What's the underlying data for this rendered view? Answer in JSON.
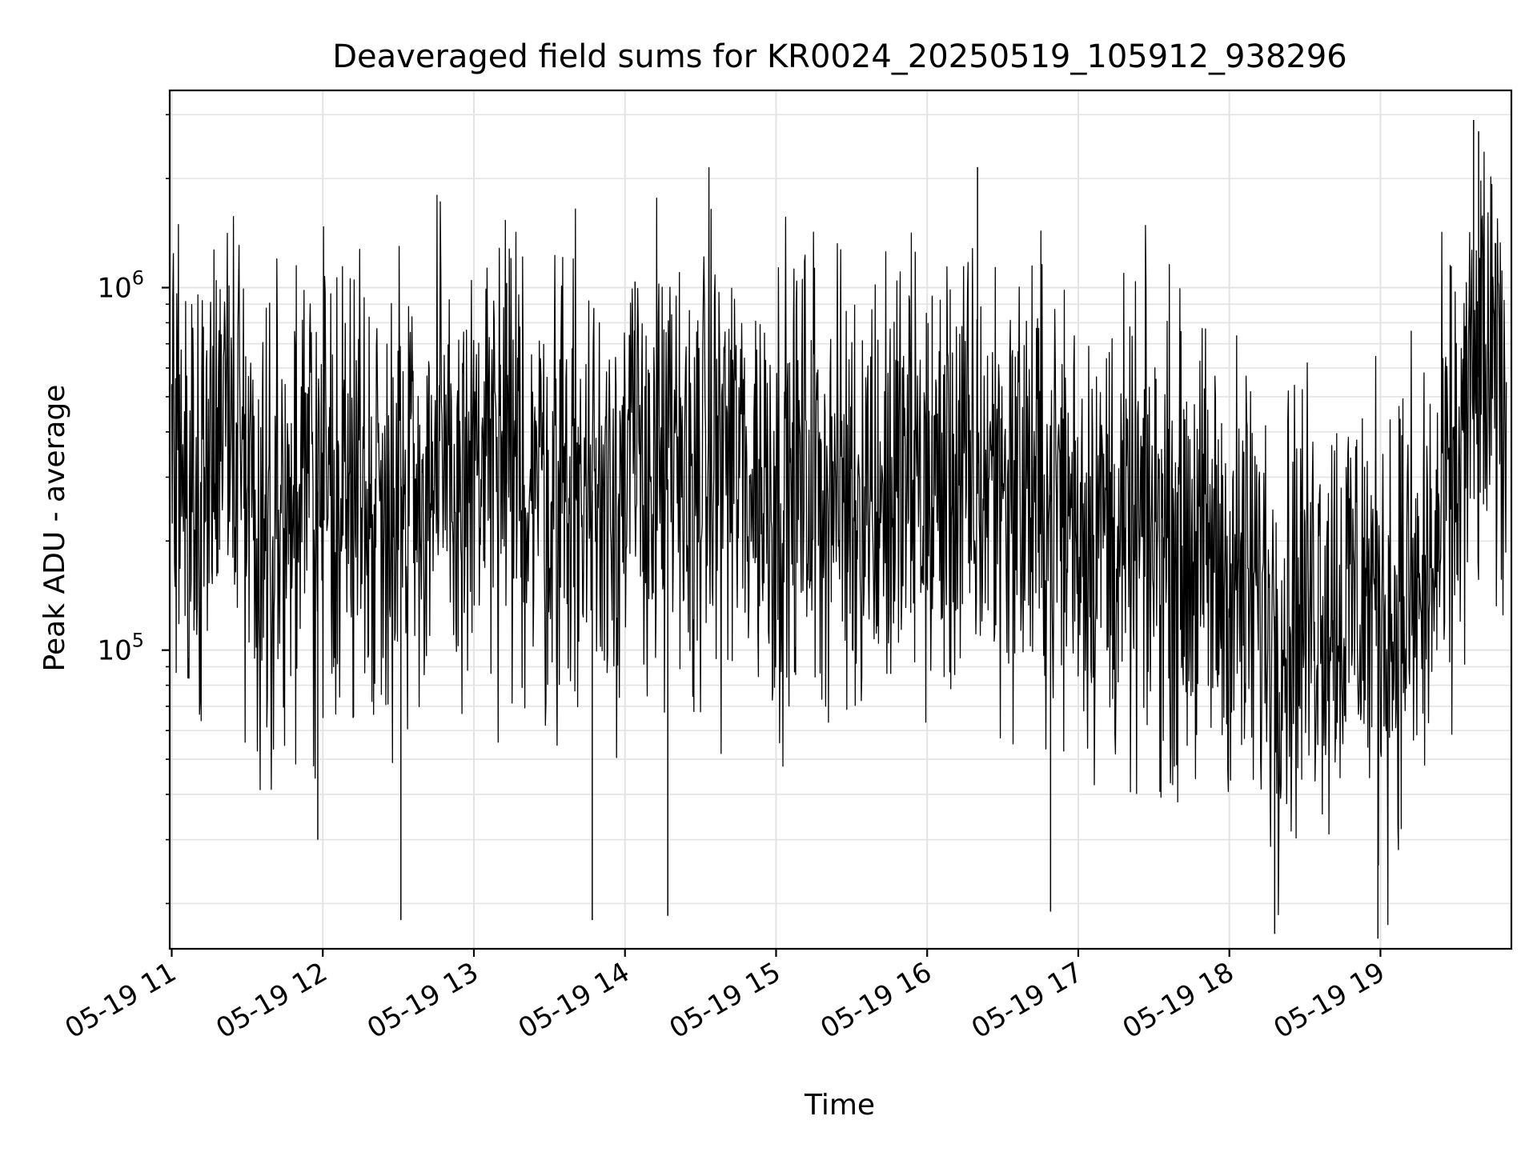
{
  "chart_data": {
    "type": "line",
    "title": "Deaveraged field sums for KR0024_20250519_105912_938296",
    "xlabel": "Time",
    "ylabel": "Peak ADU - average",
    "yscale": "log",
    "grid": true,
    "grid_which": "both",
    "x_range": [
      "2025-05-19T10:59:12",
      "2025-05-19T19:52:00"
    ],
    "ylim": [
      15000,
      3500000
    ],
    "x_ticks": [
      {
        "time": "2025-05-19T11:00:00",
        "label": "05-19 11"
      },
      {
        "time": "2025-05-19T12:00:00",
        "label": "05-19 12"
      },
      {
        "time": "2025-05-19T13:00:00",
        "label": "05-19 13"
      },
      {
        "time": "2025-05-19T14:00:00",
        "label": "05-19 14"
      },
      {
        "time": "2025-05-19T15:00:00",
        "label": "05-19 15"
      },
      {
        "time": "2025-05-19T16:00:00",
        "label": "05-19 16"
      },
      {
        "time": "2025-05-19T17:00:00",
        "label": "05-19 17"
      },
      {
        "time": "2025-05-19T18:00:00",
        "label": "05-19 18"
      },
      {
        "time": "2025-05-19T19:00:00",
        "label": "05-19 19"
      }
    ],
    "y_ticks": [
      {
        "value": 100000,
        "base": "10",
        "exp": "5"
      },
      {
        "value": 1000000,
        "base": "10",
        "exp": "6"
      }
    ],
    "series": [
      {
        "color": "#000000",
        "x": [
          "2025-05-19T11:00:00",
          "2025-05-19T11:05:00",
          "2025-05-19T11:10:00",
          "2025-05-19T11:15:00",
          "2025-05-19T11:20:00",
          "2025-05-19T11:25:00",
          "2025-05-19T11:30:00",
          "2025-05-19T11:35:00",
          "2025-05-19T11:40:00",
          "2025-05-19T11:45:00",
          "2025-05-19T11:50:00",
          "2025-05-19T11:55:00",
          "2025-05-19T12:00:00",
          "2025-05-19T12:05:00",
          "2025-05-19T12:10:00",
          "2025-05-19T12:15:00",
          "2025-05-19T12:20:00",
          "2025-05-19T12:25:00",
          "2025-05-19T12:30:00",
          "2025-05-19T12:35:00",
          "2025-05-19T12:40:00",
          "2025-05-19T12:45:00",
          "2025-05-19T12:50:00",
          "2025-05-19T12:55:00",
          "2025-05-19T13:00:00",
          "2025-05-19T13:05:00",
          "2025-05-19T13:10:00",
          "2025-05-19T13:15:00",
          "2025-05-19T13:20:00",
          "2025-05-19T13:25:00",
          "2025-05-19T13:30:00",
          "2025-05-19T13:35:00",
          "2025-05-19T13:40:00",
          "2025-05-19T13:45:00",
          "2025-05-19T13:50:00",
          "2025-05-19T13:55:00",
          "2025-05-19T14:00:00",
          "2025-05-19T14:05:00",
          "2025-05-19T14:10:00",
          "2025-05-19T14:15:00",
          "2025-05-19T14:20:00",
          "2025-05-19T14:25:00",
          "2025-05-19T14:30:00",
          "2025-05-19T14:35:00",
          "2025-05-19T14:40:00",
          "2025-05-19T14:45:00",
          "2025-05-19T14:50:00",
          "2025-05-19T14:55:00",
          "2025-05-19T15:00:00",
          "2025-05-19T15:05:00",
          "2025-05-19T15:10:00",
          "2025-05-19T15:15:00",
          "2025-05-19T15:20:00",
          "2025-05-19T15:25:00",
          "2025-05-19T15:30:00",
          "2025-05-19T15:35:00",
          "2025-05-19T15:40:00",
          "2025-05-19T15:45:00",
          "2025-05-19T15:50:00",
          "2025-05-19T15:55:00",
          "2025-05-19T16:00:00",
          "2025-05-19T16:05:00",
          "2025-05-19T16:10:00",
          "2025-05-19T16:15:00",
          "2025-05-19T16:20:00",
          "2025-05-19T16:25:00",
          "2025-05-19T16:30:00",
          "2025-05-19T16:35:00",
          "2025-05-19T16:40:00",
          "2025-05-19T16:45:00",
          "2025-05-19T16:50:00",
          "2025-05-19T16:55:00",
          "2025-05-19T17:00:00",
          "2025-05-19T17:05:00",
          "2025-05-19T17:10:00",
          "2025-05-19T17:15:00",
          "2025-05-19T17:20:00",
          "2025-05-19T17:25:00",
          "2025-05-19T17:30:00",
          "2025-05-19T17:35:00",
          "2025-05-19T17:40:00",
          "2025-05-19T17:45:00",
          "2025-05-19T17:50:00",
          "2025-05-19T17:55:00",
          "2025-05-19T18:00:00",
          "2025-05-19T18:05:00",
          "2025-05-19T18:10:00",
          "2025-05-19T18:15:00",
          "2025-05-19T18:20:00",
          "2025-05-19T18:25:00",
          "2025-05-19T18:30:00",
          "2025-05-19T18:35:00",
          "2025-05-19T18:40:00",
          "2025-05-19T18:45:00",
          "2025-05-19T18:50:00",
          "2025-05-19T18:55:00",
          "2025-05-19T19:00:00",
          "2025-05-19T19:05:00",
          "2025-05-19T19:10:00",
          "2025-05-19T19:15:00",
          "2025-05-19T19:20:00",
          "2025-05-19T19:25:00",
          "2025-05-19T19:30:00",
          "2025-05-19T19:35:00",
          "2025-05-19T19:40:00",
          "2025-05-19T19:45:00",
          "2025-05-19T19:50:00"
        ],
        "y": [
          280000,
          320000,
          250000,
          380000,
          550000,
          420000,
          300000,
          210000,
          230000,
          260000,
          240000,
          280000,
          270000,
          300000,
          260000,
          310000,
          250000,
          280000,
          290000,
          330000,
          270000,
          300000,
          260000,
          290000,
          310000,
          340000,
          300000,
          280000,
          320000,
          300000,
          270000,
          310000,
          290000,
          260000,
          300000,
          320000,
          280000,
          310000,
          330000,
          300000,
          290000,
          270000,
          320000,
          340000,
          360000,
          320000,
          300000,
          290000,
          270000,
          280000,
          300000,
          310000,
          290000,
          280000,
          260000,
          300000,
          280000,
          270000,
          290000,
          310000,
          260000,
          280000,
          300000,
          290000,
          270000,
          320000,
          300000,
          280000,
          290000,
          260000,
          270000,
          250000,
          240000,
          220000,
          230000,
          200000,
          190000,
          210000,
          200000,
          220000,
          190000,
          200000,
          180000,
          170000,
          160000,
          150000,
          140000,
          130000,
          120000,
          140000,
          130000,
          150000,
          140000,
          130000,
          150000,
          140000,
          130000,
          120000,
          140000,
          130000,
          160000,
          220000,
          300000,
          450000,
          600000,
          520000,
          480000
        ],
        "spikes": [
          {
            "time": "2025-05-19T11:58:00",
            "value": 30000
          },
          {
            "time": "2025-05-19T12:31:00",
            "value": 18000
          },
          {
            "time": "2025-05-19T13:13:00",
            "value": 1030000
          },
          {
            "time": "2025-05-19T13:47:00",
            "value": 18000
          },
          {
            "time": "2025-05-19T14:04:00",
            "value": 1040000
          },
          {
            "time": "2025-05-19T14:17:00",
            "value": 18500
          },
          {
            "time": "2025-05-19T16:02:00",
            "value": 950000
          },
          {
            "time": "2025-05-19T16:20:00",
            "value": 2150000
          },
          {
            "time": "2025-05-19T16:49:00",
            "value": 19000
          },
          {
            "time": "2025-05-19T18:18:00",
            "value": 16500
          },
          {
            "time": "2025-05-19T18:59:00",
            "value": 16000
          },
          {
            "time": "2025-05-19T19:37:00",
            "value": 2900000
          },
          {
            "time": "2025-05-19T19:39:00",
            "value": 2700000
          }
        ]
      }
    ]
  }
}
